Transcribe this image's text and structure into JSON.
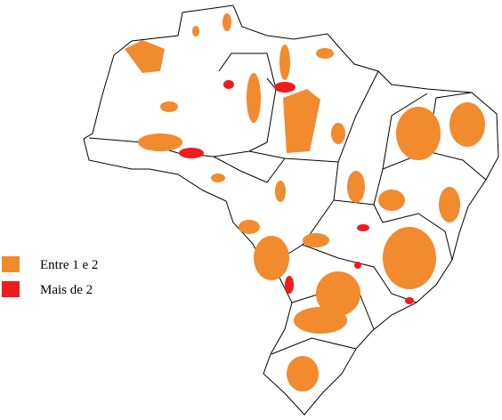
{
  "legend": [
    {
      "label": "Entre 1 e 2",
      "color": "#f28a2e"
    },
    {
      "label": "Mais de 2",
      "color": "#ee1c1c"
    }
  ]
}
